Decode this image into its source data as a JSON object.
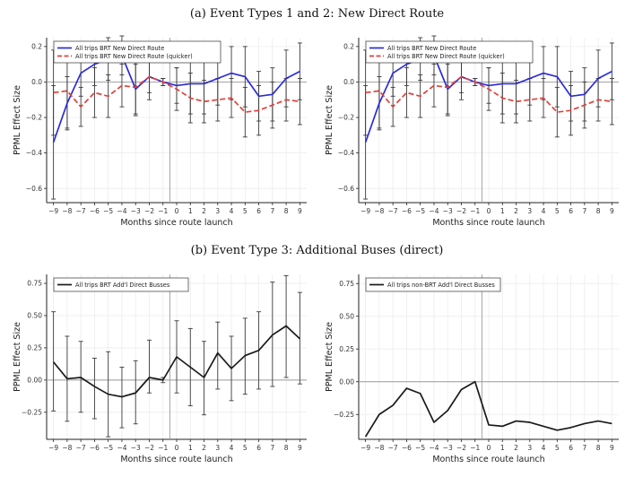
{
  "panel_titles": {
    "a": "(a) Event Types 1 and 2: New Direct Route",
    "b": "(b) Event Type 3: Additional Buses (direct)"
  },
  "colors": {
    "blue": "#2b2bd8",
    "red": "#e0403a",
    "black": "#1a1a1a",
    "errorbar": "#3a3a3a",
    "grid": "#ececec",
    "zero_line": "#9a9a9a"
  },
  "chart_data": [
    {
      "type": "line",
      "xlabel": "Months since route launch",
      "ylabel": "PPML Effect Size",
      "x": [
        -9,
        -8,
        -7,
        -6,
        -5,
        -4,
        -3,
        -2,
        -1,
        0,
        1,
        2,
        3,
        4,
        5,
        6,
        7,
        8,
        9
      ],
      "xticks": [
        -9,
        -8,
        -7,
        -6,
        -5,
        -4,
        -3,
        -2,
        -1,
        0,
        1,
        2,
        3,
        4,
        5,
        6,
        7,
        8,
        9
      ],
      "ylim": [
        -0.68,
        0.25
      ],
      "yticks": [
        -0.6,
        -0.4,
        -0.2,
        0.0,
        0.2
      ],
      "yticklabels": [
        "-0.6",
        "-0.4",
        "-0.2",
        "0.0",
        "0.2"
      ],
      "event_line_x": -0.5,
      "legend_position": "top-left",
      "series": [
        {
          "name": "All trips BRT New Direct Route",
          "color": "blue",
          "style": "solid",
          "values": [
            -0.34,
            -0.12,
            0.05,
            0.1,
            0.13,
            0.15,
            -0.04,
            0.03,
            0.0,
            -0.02,
            -0.01,
            -0.01,
            0.02,
            0.05,
            0.03,
            -0.08,
            -0.07,
            0.02,
            0.06
          ],
          "err_low": [
            -0.66,
            -0.27,
            -0.08,
            -0.02,
            0.01,
            0.04,
            -0.18,
            -0.06,
            -0.02,
            -0.12,
            -0.18,
            -0.18,
            -0.13,
            -0.1,
            -0.14,
            -0.22,
            -0.22,
            -0.14,
            -0.1
          ],
          "err_high": [
            -0.02,
            0.03,
            0.18,
            0.22,
            0.25,
            0.26,
            0.1,
            0.12,
            0.02,
            0.08,
            0.16,
            0.16,
            0.17,
            0.2,
            0.2,
            0.06,
            0.08,
            0.18,
            0.22
          ]
        },
        {
          "name": "All trips BRT New Direct Route (quicker)",
          "color": "red",
          "style": "dashed",
          "values": [
            -0.06,
            -0.05,
            -0.14,
            -0.06,
            -0.08,
            -0.02,
            -0.03,
            0.03,
            0.0,
            -0.04,
            -0.09,
            -0.11,
            -0.1,
            -0.09,
            -0.17,
            -0.16,
            -0.13,
            -0.1,
            -0.11
          ],
          "err_low": [
            -0.3,
            -0.26,
            -0.25,
            -0.2,
            -0.2,
            -0.14,
            -0.19,
            -0.1,
            -0.02,
            -0.16,
            -0.23,
            -0.23,
            -0.22,
            -0.2,
            -0.31,
            -0.3,
            -0.26,
            -0.22,
            -0.24
          ],
          "err_high": [
            0.18,
            0.16,
            -0.03,
            0.08,
            0.04,
            0.1,
            0.13,
            0.16,
            0.02,
            0.08,
            0.05,
            0.01,
            0.02,
            0.02,
            -0.03,
            -0.02,
            0.0,
            0.02,
            0.02
          ]
        }
      ]
    },
    {
      "type": "line",
      "xlabel": "Months since route launch",
      "ylabel": "PPML Effect Size",
      "x": [
        -9,
        -8,
        -7,
        -6,
        -5,
        -4,
        -3,
        -2,
        -1,
        0,
        1,
        2,
        3,
        4,
        5,
        6,
        7,
        8,
        9
      ],
      "xticks": [
        -9,
        -8,
        -7,
        -6,
        -5,
        -4,
        -3,
        -2,
        -1,
        0,
        1,
        2,
        3,
        4,
        5,
        6,
        7,
        8,
        9
      ],
      "ylim": [
        -0.68,
        0.25
      ],
      "yticks": [
        -0.6,
        -0.4,
        -0.2,
        0.0,
        0.2
      ],
      "yticklabels": [
        "-0.6",
        "-0.4",
        "-0.2",
        "0.0",
        "0.2"
      ],
      "event_line_x": -0.5,
      "legend_position": "top-left",
      "series": [
        {
          "name": "All trips BRT New Direct Route",
          "color": "blue",
          "style": "solid",
          "values": [
            -0.34,
            -0.12,
            0.05,
            0.1,
            0.13,
            0.15,
            -0.04,
            0.03,
            0.0,
            -0.02,
            -0.01,
            -0.01,
            0.02,
            0.05,
            0.03,
            -0.08,
            -0.07,
            0.02,
            0.06
          ],
          "err_low": [
            -0.66,
            -0.27,
            -0.08,
            -0.02,
            0.01,
            0.04,
            -0.18,
            -0.06,
            -0.02,
            -0.12,
            -0.18,
            -0.18,
            -0.13,
            -0.1,
            -0.14,
            -0.22,
            -0.22,
            -0.14,
            -0.1
          ],
          "err_high": [
            -0.02,
            0.03,
            0.18,
            0.22,
            0.25,
            0.26,
            0.1,
            0.12,
            0.02,
            0.08,
            0.16,
            0.16,
            0.17,
            0.2,
            0.2,
            0.06,
            0.08,
            0.18,
            0.22
          ]
        },
        {
          "name": "All trips BRT New Direct Route (quicker)",
          "color": "red",
          "style": "dashed",
          "values": [
            -0.06,
            -0.05,
            -0.14,
            -0.06,
            -0.08,
            -0.02,
            -0.03,
            0.03,
            0.0,
            -0.04,
            -0.09,
            -0.11,
            -0.1,
            -0.09,
            -0.17,
            -0.16,
            -0.13,
            -0.1,
            -0.11
          ],
          "err_low": [
            -0.3,
            -0.26,
            -0.25,
            -0.2,
            -0.2,
            -0.14,
            -0.19,
            -0.1,
            -0.02,
            -0.16,
            -0.23,
            -0.23,
            -0.22,
            -0.2,
            -0.31,
            -0.3,
            -0.26,
            -0.22,
            -0.24
          ],
          "err_high": [
            0.18,
            0.16,
            -0.03,
            0.08,
            0.04,
            0.1,
            0.13,
            0.16,
            0.02,
            0.08,
            0.05,
            0.01,
            0.02,
            0.02,
            -0.03,
            -0.02,
            0.0,
            0.02,
            0.02
          ]
        }
      ]
    },
    {
      "type": "line",
      "xlabel": "Months since route launch",
      "ylabel": "PPML Effect Size",
      "x": [
        -9,
        -8,
        -7,
        -6,
        -5,
        -4,
        -3,
        -2,
        -1,
        0,
        1,
        2,
        3,
        4,
        5,
        6,
        7,
        8,
        9
      ],
      "xticks": [
        -9,
        -8,
        -7,
        -6,
        -5,
        -4,
        -3,
        -2,
        -1,
        0,
        1,
        2,
        3,
        4,
        5,
        6,
        7,
        8,
        9
      ],
      "ylim": [
        -0.46,
        0.82
      ],
      "yticks": [
        -0.25,
        0.0,
        0.25,
        0.5,
        0.75
      ],
      "yticklabels": [
        "-0.25",
        "0.00",
        "0.25",
        "0.50",
        "0.75"
      ],
      "event_line_x": -0.5,
      "legend_position": "top-left",
      "series": [
        {
          "name": "All trips BRT Add'l Direct Busses",
          "color": "black",
          "style": "solid",
          "values": [
            0.14,
            0.01,
            0.02,
            -0.05,
            -0.11,
            -0.13,
            -0.1,
            0.02,
            0.0,
            0.18,
            0.1,
            0.02,
            0.21,
            0.09,
            0.19,
            0.23,
            0.35,
            0.42,
            0.32
          ],
          "err_low": [
            -0.24,
            -0.32,
            -0.25,
            -0.3,
            -0.44,
            -0.37,
            -0.34,
            -0.1,
            -0.02,
            -0.1,
            -0.2,
            -0.27,
            -0.07,
            -0.16,
            -0.11,
            -0.07,
            -0.05,
            0.02,
            -0.03
          ],
          "err_high": [
            0.53,
            0.34,
            0.3,
            0.17,
            0.22,
            0.1,
            0.15,
            0.31,
            0.02,
            0.46,
            0.4,
            0.3,
            0.45,
            0.34,
            0.48,
            0.53,
            0.76,
            0.81,
            0.68
          ]
        }
      ]
    },
    {
      "type": "line",
      "xlabel": "Months since route launch",
      "ylabel": "PPML Effect Size",
      "x": [
        -9,
        -8,
        -7,
        -6,
        -5,
        -4,
        -3,
        -2,
        -1,
        0,
        1,
        2,
        3,
        4,
        5,
        6,
        7,
        8,
        9
      ],
      "xticks": [
        -9,
        -8,
        -7,
        -6,
        -5,
        -4,
        -3,
        -2,
        -1,
        0,
        1,
        2,
        3,
        4,
        5,
        6,
        7,
        8,
        9
      ],
      "ylim": [
        -0.44,
        0.82
      ],
      "yticks": [
        -0.25,
        0.0,
        0.25,
        0.5,
        0.75
      ],
      "yticklabels": [
        "-0.25",
        "0.00",
        "0.25",
        "0.50",
        "0.75"
      ],
      "event_line_x": -0.5,
      "legend_position": "top-left",
      "series": [
        {
          "name": "All trips non-BRT Add'l Direct Busses",
          "color": "black",
          "style": "solid",
          "values": [
            -0.42,
            -0.25,
            -0.18,
            -0.05,
            -0.09,
            -0.31,
            -0.22,
            -0.06,
            0.0,
            -0.33,
            -0.34,
            -0.3,
            -0.31,
            -0.34,
            -0.37,
            -0.35,
            -0.32,
            -0.3,
            -0.32
          ]
        }
      ]
    }
  ]
}
